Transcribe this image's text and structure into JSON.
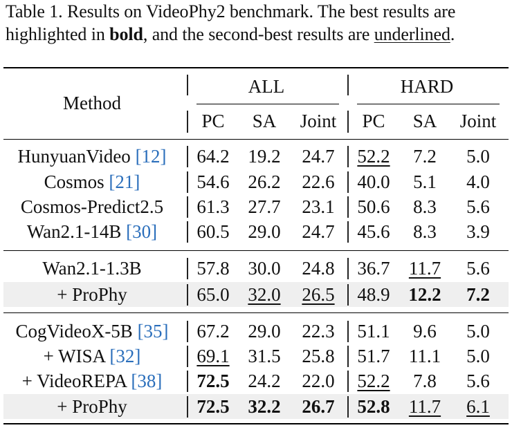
{
  "caption": {
    "prefix": "Table 1. Results on VideoPhy2 benchmark. The best results are highlighted in ",
    "bold_word": "bold",
    "middle": ", and the second-best results are ",
    "underline_word": "underlined",
    "suffix": "."
  },
  "header": {
    "method": "Method",
    "group_all": "ALL",
    "group_hard": "HARD",
    "cols": [
      "PC",
      "SA",
      "Joint",
      "PC",
      "SA",
      "Joint"
    ]
  },
  "rows": [
    {
      "method": "HunyuanVideo",
      "cite": "[12]",
      "values": [
        "64.2",
        "19.2",
        "24.7",
        "52.2",
        "7.2",
        "5.0"
      ],
      "bold": [],
      "underline": [
        3
      ],
      "shaded": false
    },
    {
      "method": "Cosmos",
      "cite": "[21]",
      "values": [
        "54.6",
        "26.2",
        "22.6",
        "40.0",
        "5.1",
        "4.0"
      ],
      "bold": [],
      "underline": [],
      "shaded": false
    },
    {
      "method": "Cosmos-Predict2.5",
      "cite": "",
      "values": [
        "61.3",
        "27.7",
        "23.1",
        "50.6",
        "8.3",
        "5.6"
      ],
      "bold": [],
      "underline": [],
      "shaded": false
    },
    {
      "method": "Wan2.1-14B",
      "cite": "[30]",
      "values": [
        "60.5",
        "29.0",
        "24.7",
        "45.6",
        "8.3",
        "3.9"
      ],
      "bold": [],
      "underline": [],
      "shaded": false
    },
    {
      "method": "Wan2.1-1.3B",
      "cite": "",
      "values": [
        "57.8",
        "30.0",
        "24.8",
        "36.7",
        "11.7",
        "5.6"
      ],
      "bold": [],
      "underline": [
        4
      ],
      "shaded": false
    },
    {
      "method": "+ ProPhy",
      "cite": "",
      "values": [
        "65.0",
        "32.0",
        "26.5",
        "48.9",
        "12.2",
        "7.2"
      ],
      "bold": [
        4,
        5
      ],
      "underline": [
        1,
        2
      ],
      "shaded": true
    },
    {
      "method": "CogVideoX-5B",
      "cite": "[35]",
      "values": [
        "67.2",
        "29.0",
        "22.3",
        "51.1",
        "9.6",
        "5.0"
      ],
      "bold": [],
      "underline": [],
      "shaded": false
    },
    {
      "method": "+ WISA",
      "cite": "[32]",
      "values": [
        "69.1",
        "31.5",
        "25.8",
        "51.7",
        "11.1",
        "5.0"
      ],
      "bold": [],
      "underline": [
        0
      ],
      "shaded": false
    },
    {
      "method": "+ VideoREPA",
      "cite": "[38]",
      "values": [
        "72.5",
        "24.2",
        "22.0",
        "52.2",
        "7.8",
        "5.6"
      ],
      "bold": [
        0
      ],
      "underline": [
        3
      ],
      "shaded": false
    },
    {
      "method": "+ ProPhy",
      "cite": "",
      "values": [
        "72.5",
        "32.2",
        "26.7",
        "52.8",
        "11.7",
        "6.1"
      ],
      "bold": [
        0,
        1,
        2,
        3
      ],
      "underline": [
        4,
        5
      ],
      "shaded": true
    }
  ]
}
